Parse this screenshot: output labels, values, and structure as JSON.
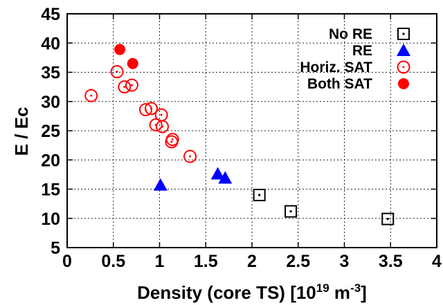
{
  "chart_data": {
    "type": "scatter",
    "title": "",
    "xlabel": "Density (core TS) [10",
    "xlabel_exponent": "19",
    "xlabel_unit": " m",
    "xlabel_unit_exponent": "-3",
    "xlabel_close": "]",
    "ylabel": "E / Ec",
    "xlim": [
      0,
      4
    ],
    "ylim": [
      5,
      45
    ],
    "xticks": [
      "0",
      "0.5",
      "1",
      "1.5",
      "2",
      "2.5",
      "3",
      "3.5",
      "4"
    ],
    "yticks": [
      "5",
      "10",
      "15",
      "20",
      "25",
      "30",
      "35",
      "40",
      "45"
    ],
    "grid": true,
    "legend_position": "top-right",
    "series": [
      {
        "name": "No RE",
        "marker": "open-square",
        "color": "#000000",
        "points": [
          {
            "x": 2.08,
            "y": 14.0
          },
          {
            "x": 2.42,
            "y": 11.2
          },
          {
            "x": 3.47,
            "y": 9.9
          }
        ]
      },
      {
        "name": "RE",
        "marker": "filled-triangle",
        "color": "#0000ff",
        "points": [
          {
            "x": 1.01,
            "y": 15.7
          },
          {
            "x": 1.63,
            "y": 17.6
          },
          {
            "x": 1.71,
            "y": 16.9
          }
        ]
      },
      {
        "name": "Horiz. SAT",
        "marker": "open-circle-dot",
        "color": "#ff0000",
        "points": [
          {
            "x": 0.26,
            "y": 31.0
          },
          {
            "x": 0.54,
            "y": 35.1
          },
          {
            "x": 0.62,
            "y": 32.5
          },
          {
            "x": 0.7,
            "y": 32.8
          },
          {
            "x": 0.85,
            "y": 28.6
          },
          {
            "x": 0.91,
            "y": 28.8
          },
          {
            "x": 1.02,
            "y": 27.7
          },
          {
            "x": 0.96,
            "y": 26.0
          },
          {
            "x": 1.03,
            "y": 25.7
          },
          {
            "x": 1.14,
            "y": 23.5
          },
          {
            "x": 1.13,
            "y": 23.1
          },
          {
            "x": 1.33,
            "y": 20.6
          }
        ]
      },
      {
        "name": "Both SAT",
        "marker": "filled-circle",
        "color": "#ff0000",
        "points": [
          {
            "x": 0.57,
            "y": 38.9
          },
          {
            "x": 0.71,
            "y": 36.5
          }
        ]
      }
    ]
  }
}
